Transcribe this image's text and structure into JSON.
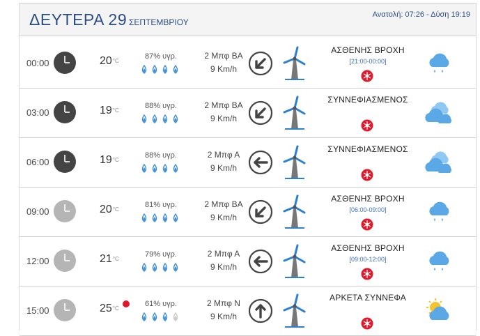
{
  "header": {
    "day": "ΔΕΥΤΕΡΑ 29",
    "month": "ΣΕΠΤΕΜΒΡΙΟΥ",
    "sunrise_sunset": "Ανατολή: 07:26  - Δύση 19:19"
  },
  "colors": {
    "accent": "#2c4e86",
    "drop": "#3f8fd6",
    "alert": "#e0192c",
    "link": "#3a6fc4"
  },
  "temp_unit": "°C",
  "rows": [
    {
      "time": "00:00",
      "clock": "dark",
      "temp": "20",
      "humidity": "87% υγρ.",
      "drops_filled": 4,
      "wind_force": "2 Μπφ ΒΑ",
      "wind_speed": "9 Km/h",
      "wind_dir_icon": "arrow-southwest-icon",
      "condition": "ΑΣΘΕΝΗΣ ΒΡΟΧΗ",
      "range": "[21:00-00:00]",
      "weather_icon": "rain-cloud-icon",
      "hot": false
    },
    {
      "time": "03:00",
      "clock": "dark",
      "temp": "19",
      "humidity": "88% υγρ.",
      "drops_filled": 4,
      "wind_force": "2 Μπφ ΒΑ",
      "wind_speed": "9 Km/h",
      "wind_dir_icon": "arrow-southwest-icon",
      "condition": "ΣΥΝΝΕΦΙΑΣΜΕΝΟΣ",
      "range": "",
      "weather_icon": "clouds-icon",
      "hot": false
    },
    {
      "time": "06:00",
      "clock": "dark",
      "temp": "19",
      "humidity": "88% υγρ.",
      "drops_filled": 4,
      "wind_force": "2 Μπφ Α",
      "wind_speed": "9 Km/h",
      "wind_dir_icon": "arrow-west-icon",
      "condition": "ΣΥΝΝΕΦΙΑΣΜΕΝΟΣ",
      "range": "",
      "weather_icon": "clouds-icon",
      "hot": false
    },
    {
      "time": "09:00",
      "clock": "light",
      "temp": "20",
      "humidity": "81% υγρ.",
      "drops_filled": 4,
      "wind_force": "2 Μπφ ΒΑ",
      "wind_speed": "9 Km/h",
      "wind_dir_icon": "arrow-southwest-icon",
      "condition": "ΑΣΘΕΝΗΣ ΒΡΟΧΗ",
      "range": "[06:00-09:00]",
      "weather_icon": "rain-cloud-icon",
      "hot": false
    },
    {
      "time": "12:00",
      "clock": "light",
      "temp": "21",
      "humidity": "79% υγρ.",
      "drops_filled": 4,
      "wind_force": "2 Μπφ Α",
      "wind_speed": "9 Km/h",
      "wind_dir_icon": "arrow-west-icon",
      "condition": "ΑΣΘΕΝΗΣ ΒΡΟΧΗ",
      "range": "[09:00-12:00]",
      "weather_icon": "rain-cloud-icon",
      "hot": false
    },
    {
      "time": "15:00",
      "clock": "light",
      "temp": "25",
      "humidity": "61% υγρ.",
      "drops_filled": 3,
      "wind_force": "2 Μπφ Ν",
      "wind_speed": "9 Km/h",
      "wind_dir_icon": "arrow-north-icon",
      "condition": "ΑΡΚΕΤΑ ΣΥΝΝΕΦΑ",
      "range": "",
      "weather_icon": "sun-cloud-icon",
      "hot": true
    }
  ]
}
